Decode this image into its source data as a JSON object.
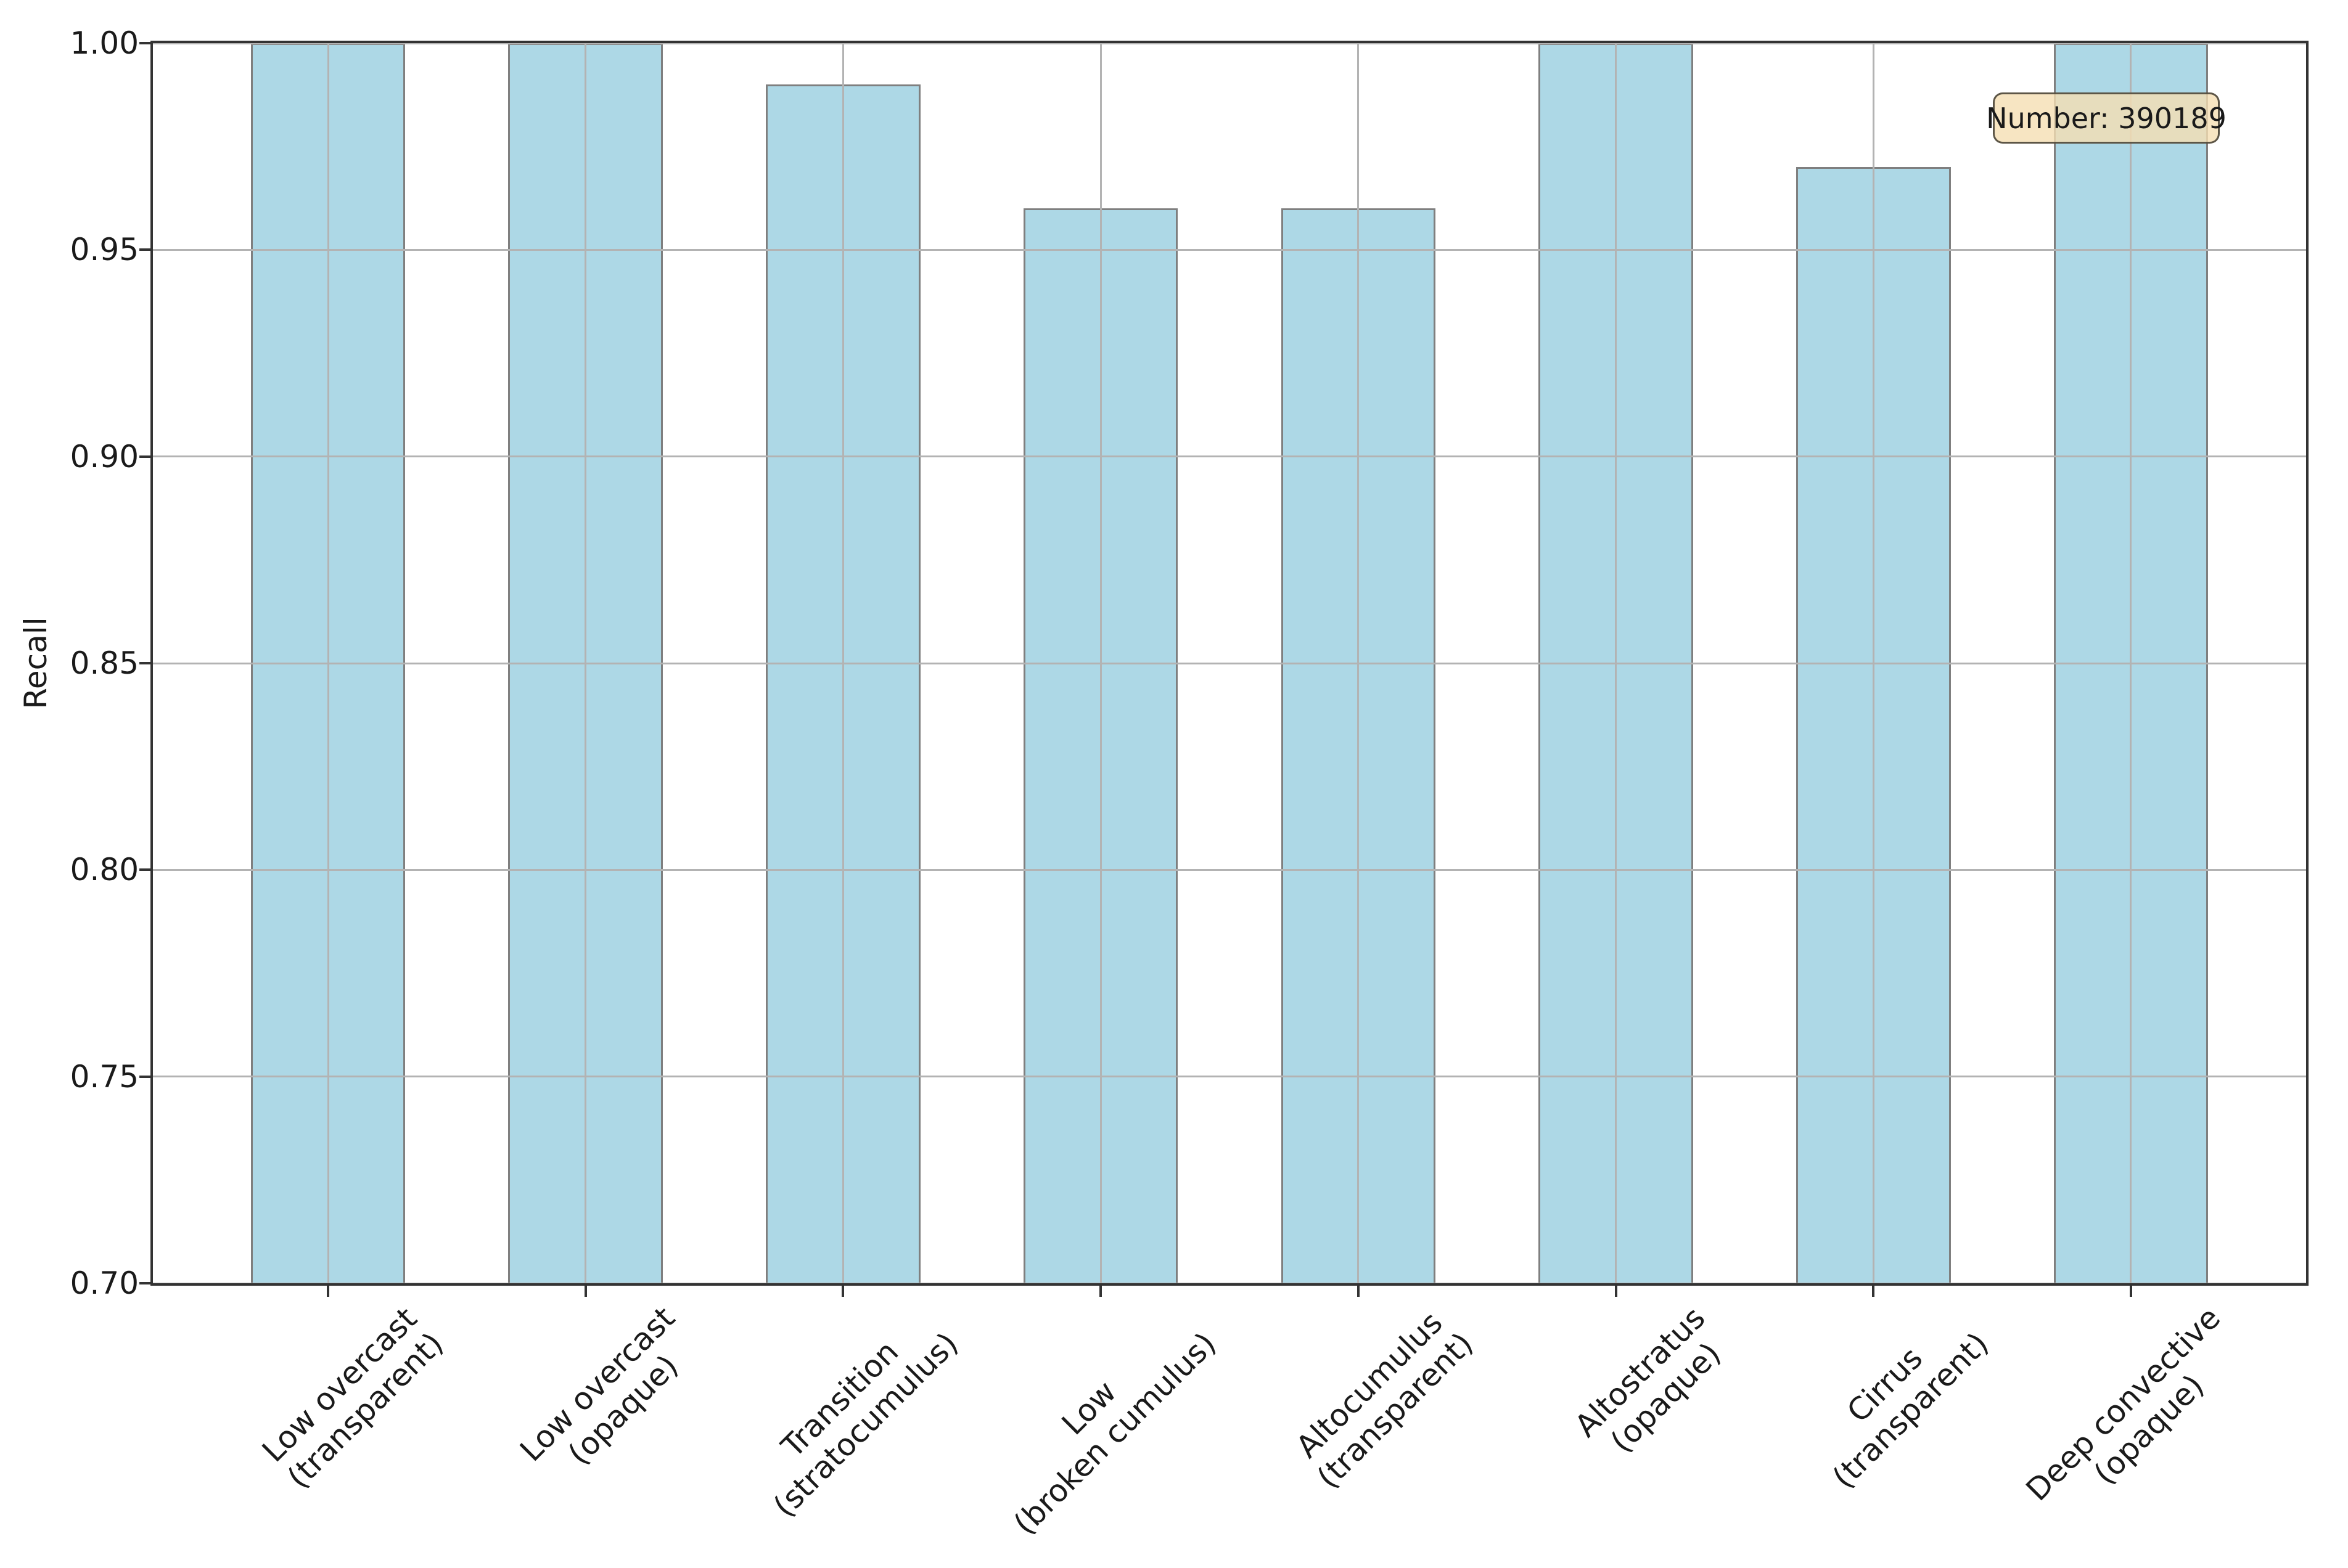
{
  "figure": {
    "background_color": "#FFFFFF"
  },
  "chart_data": {
    "type": "bar",
    "title": "",
    "xlabel": "",
    "ylabel": "Recall",
    "ylim": [
      0.7,
      1.0
    ],
    "ytick_step": 0.05,
    "ytick_labels": [
      "0.70",
      "0.75",
      "0.80",
      "0.85",
      "0.90",
      "0.95",
      "1.00"
    ],
    "grid": true,
    "grid_axes": "both",
    "legend": false,
    "xtick_rotation": 45,
    "categories": [
      "Low overcast\n(transparent)",
      "Low overcast\n(opaque)",
      "Transition\n(stratocumulus)",
      "Low\n(broken cumulus)",
      "Altocumulus\n(transparent)",
      "Altostratus\n(opaque)",
      "Cirrus\n(transparent)",
      "Deep convective\n(opaque)"
    ],
    "values": [
      1.0,
      1.0,
      0.99,
      0.96,
      0.96,
      1.0,
      0.97,
      1.0
    ],
    "annotation": "Number: 390189",
    "colors": {
      "bar_fill": "#ADD8E6",
      "bar_edge": "#7F7F7F",
      "gridline": "#B3B3B3",
      "spine": "#333333",
      "tick": "#333333",
      "text": "#1A1A1A",
      "annotation_bg": "rgba(245, 222, 179, 0.8)",
      "annotation_border": "rgba(77, 70, 58, 0.9)"
    }
  }
}
